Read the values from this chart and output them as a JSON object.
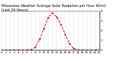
{
  "title": "Milwaukee Weather Average Solar Radiation per Hour W/m2 (Last 24 Hours)",
  "hours": [
    0,
    1,
    2,
    3,
    4,
    5,
    6,
    7,
    8,
    9,
    10,
    11,
    12,
    13,
    14,
    15,
    16,
    17,
    18,
    19,
    20,
    21,
    22,
    23
  ],
  "values": [
    0,
    0,
    0,
    0,
    0,
    0,
    0,
    3,
    30,
    110,
    220,
    330,
    380,
    340,
    260,
    160,
    65,
    15,
    1,
    0,
    0,
    0,
    0,
    0
  ],
  "line_color": "#cc0000",
  "line_style": "--",
  "marker": ".",
  "bg_color": "#ffffff",
  "grid_color": "#aaaaaa",
  "ylim": [
    0,
    400
  ],
  "xlim": [
    0,
    23
  ],
  "title_fontsize": 3.5,
  "tick_fontsize": 3.0
}
